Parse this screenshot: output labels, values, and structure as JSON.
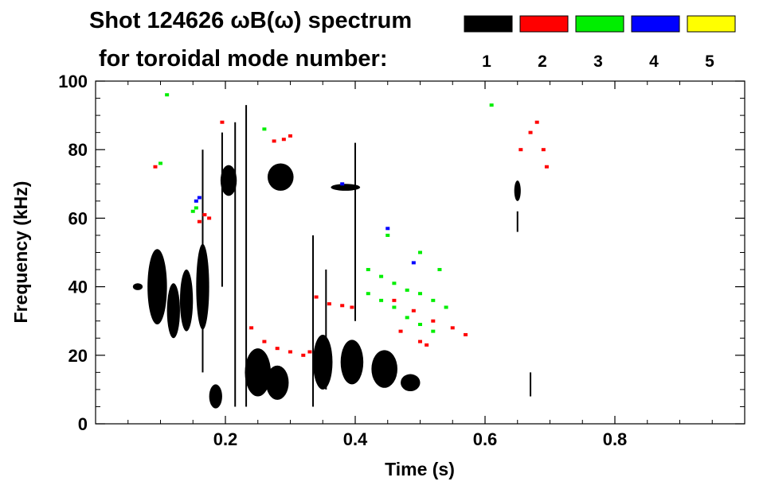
{
  "chart_data": {
    "type": "scatter",
    "title_line1": "Shot 124626 ωB(ω) spectrum",
    "title_line2": "for toroidal mode number:",
    "xlabel": "Time (s)",
    "ylabel": "Frequency (kHz)",
    "xlim": [
      0.0,
      1.0
    ],
    "ylim": [
      0,
      100
    ],
    "x_ticks": [
      0.2,
      0.4,
      0.6,
      0.8
    ],
    "x_tick_labels": [
      "0.2",
      "0.4",
      "0.6",
      "0.8"
    ],
    "y_ticks": [
      0,
      20,
      40,
      60,
      80,
      100
    ],
    "y_tick_labels": [
      "0",
      "20",
      "40",
      "60",
      "80",
      "100"
    ],
    "grid": false,
    "legend_placement": "top",
    "legend": [
      {
        "label": "1",
        "color": "#000000"
      },
      {
        "label": "2",
        "color": "#ff0000"
      },
      {
        "label": "3",
        "color": "#00ee00"
      },
      {
        "label": "4",
        "color": "#0000ff"
      },
      {
        "label": "5",
        "color": "#ffff00"
      }
    ],
    "series": [
      {
        "name": "1",
        "color": "#000000",
        "blobs": [
          {
            "x": 0.065,
            "y": 40,
            "w": 0.015,
            "h": 2
          },
          {
            "x": 0.095,
            "y": 40,
            "w": 0.03,
            "h": 22
          },
          {
            "x": 0.12,
            "y": 33,
            "w": 0.02,
            "h": 16
          },
          {
            "x": 0.14,
            "y": 36,
            "w": 0.02,
            "h": 18
          },
          {
            "x": 0.165,
            "y": 40,
            "w": 0.02,
            "h": 25
          },
          {
            "x": 0.185,
            "y": 8,
            "w": 0.02,
            "h": 7
          },
          {
            "x": 0.205,
            "y": 71,
            "w": 0.025,
            "h": 9
          },
          {
            "x": 0.25,
            "y": 15,
            "w": 0.04,
            "h": 14
          },
          {
            "x": 0.28,
            "y": 12,
            "w": 0.035,
            "h": 10
          },
          {
            "x": 0.285,
            "y": 72,
            "w": 0.04,
            "h": 8
          },
          {
            "x": 0.35,
            "y": 18,
            "w": 0.03,
            "h": 16
          },
          {
            "x": 0.395,
            "y": 18,
            "w": 0.035,
            "h": 13
          },
          {
            "x": 0.445,
            "y": 16,
            "w": 0.04,
            "h": 11
          },
          {
            "x": 0.485,
            "y": 12,
            "w": 0.03,
            "h": 5
          },
          {
            "x": 0.385,
            "y": 69,
            "w": 0.045,
            "h": 2
          },
          {
            "x": 0.65,
            "y": 68,
            "w": 0.01,
            "h": 6
          }
        ],
        "lines": [
          {
            "x": 0.232,
            "y0": 5,
            "y1": 93
          },
          {
            "x": 0.215,
            "y0": 5,
            "y1": 88
          },
          {
            "x": 0.195,
            "y0": 40,
            "y1": 85
          },
          {
            "x": 0.335,
            "y0": 5,
            "y1": 55
          },
          {
            "x": 0.355,
            "y0": 10,
            "y1": 45
          },
          {
            "x": 0.4,
            "y0": 30,
            "y1": 82
          },
          {
            "x": 0.165,
            "y0": 15,
            "y1": 80
          },
          {
            "x": 0.65,
            "y0": 56,
            "y1": 62
          },
          {
            "x": 0.67,
            "y0": 8,
            "y1": 15
          }
        ]
      },
      {
        "name": "2",
        "color": "#ff0000",
        "points": [
          [
            0.092,
            75
          ],
          [
            0.16,
            59
          ],
          [
            0.168,
            61
          ],
          [
            0.175,
            60
          ],
          [
            0.195,
            88
          ],
          [
            0.275,
            82.5
          ],
          [
            0.29,
            83
          ],
          [
            0.3,
            84
          ],
          [
            0.24,
            28
          ],
          [
            0.26,
            24
          ],
          [
            0.28,
            22
          ],
          [
            0.3,
            21
          ],
          [
            0.32,
            20
          ],
          [
            0.33,
            21
          ],
          [
            0.34,
            37
          ],
          [
            0.36,
            35
          ],
          [
            0.38,
            34.5
          ],
          [
            0.395,
            34
          ],
          [
            0.46,
            36
          ],
          [
            0.49,
            33
          ],
          [
            0.52,
            30
          ],
          [
            0.55,
            28
          ],
          [
            0.57,
            26
          ],
          [
            0.47,
            27
          ],
          [
            0.5,
            24
          ],
          [
            0.51,
            23
          ],
          [
            0.655,
            80
          ],
          [
            0.67,
            85
          ],
          [
            0.68,
            88
          ],
          [
            0.69,
            80
          ],
          [
            0.695,
            75
          ]
        ]
      },
      {
        "name": "3",
        "color": "#00ee00",
        "points": [
          [
            0.11,
            96
          ],
          [
            0.15,
            62
          ],
          [
            0.155,
            63
          ],
          [
            0.1,
            76
          ],
          [
            0.26,
            86
          ],
          [
            0.42,
            45
          ],
          [
            0.44,
            43
          ],
          [
            0.46,
            41
          ],
          [
            0.48,
            39
          ],
          [
            0.5,
            38
          ],
          [
            0.52,
            36
          ],
          [
            0.54,
            34
          ],
          [
            0.42,
            38
          ],
          [
            0.44,
            36
          ],
          [
            0.46,
            34
          ],
          [
            0.48,
            31
          ],
          [
            0.5,
            29
          ],
          [
            0.52,
            27
          ],
          [
            0.45,
            55
          ],
          [
            0.5,
            50
          ],
          [
            0.53,
            45
          ],
          [
            0.61,
            93
          ]
        ]
      },
      {
        "name": "4",
        "color": "#0000ff",
        "points": [
          [
            0.155,
            65
          ],
          [
            0.16,
            66
          ],
          [
            0.38,
            70
          ],
          [
            0.45,
            57
          ],
          [
            0.49,
            47
          ]
        ]
      },
      {
        "name": "5",
        "color": "#ffff00",
        "points": []
      }
    ]
  }
}
